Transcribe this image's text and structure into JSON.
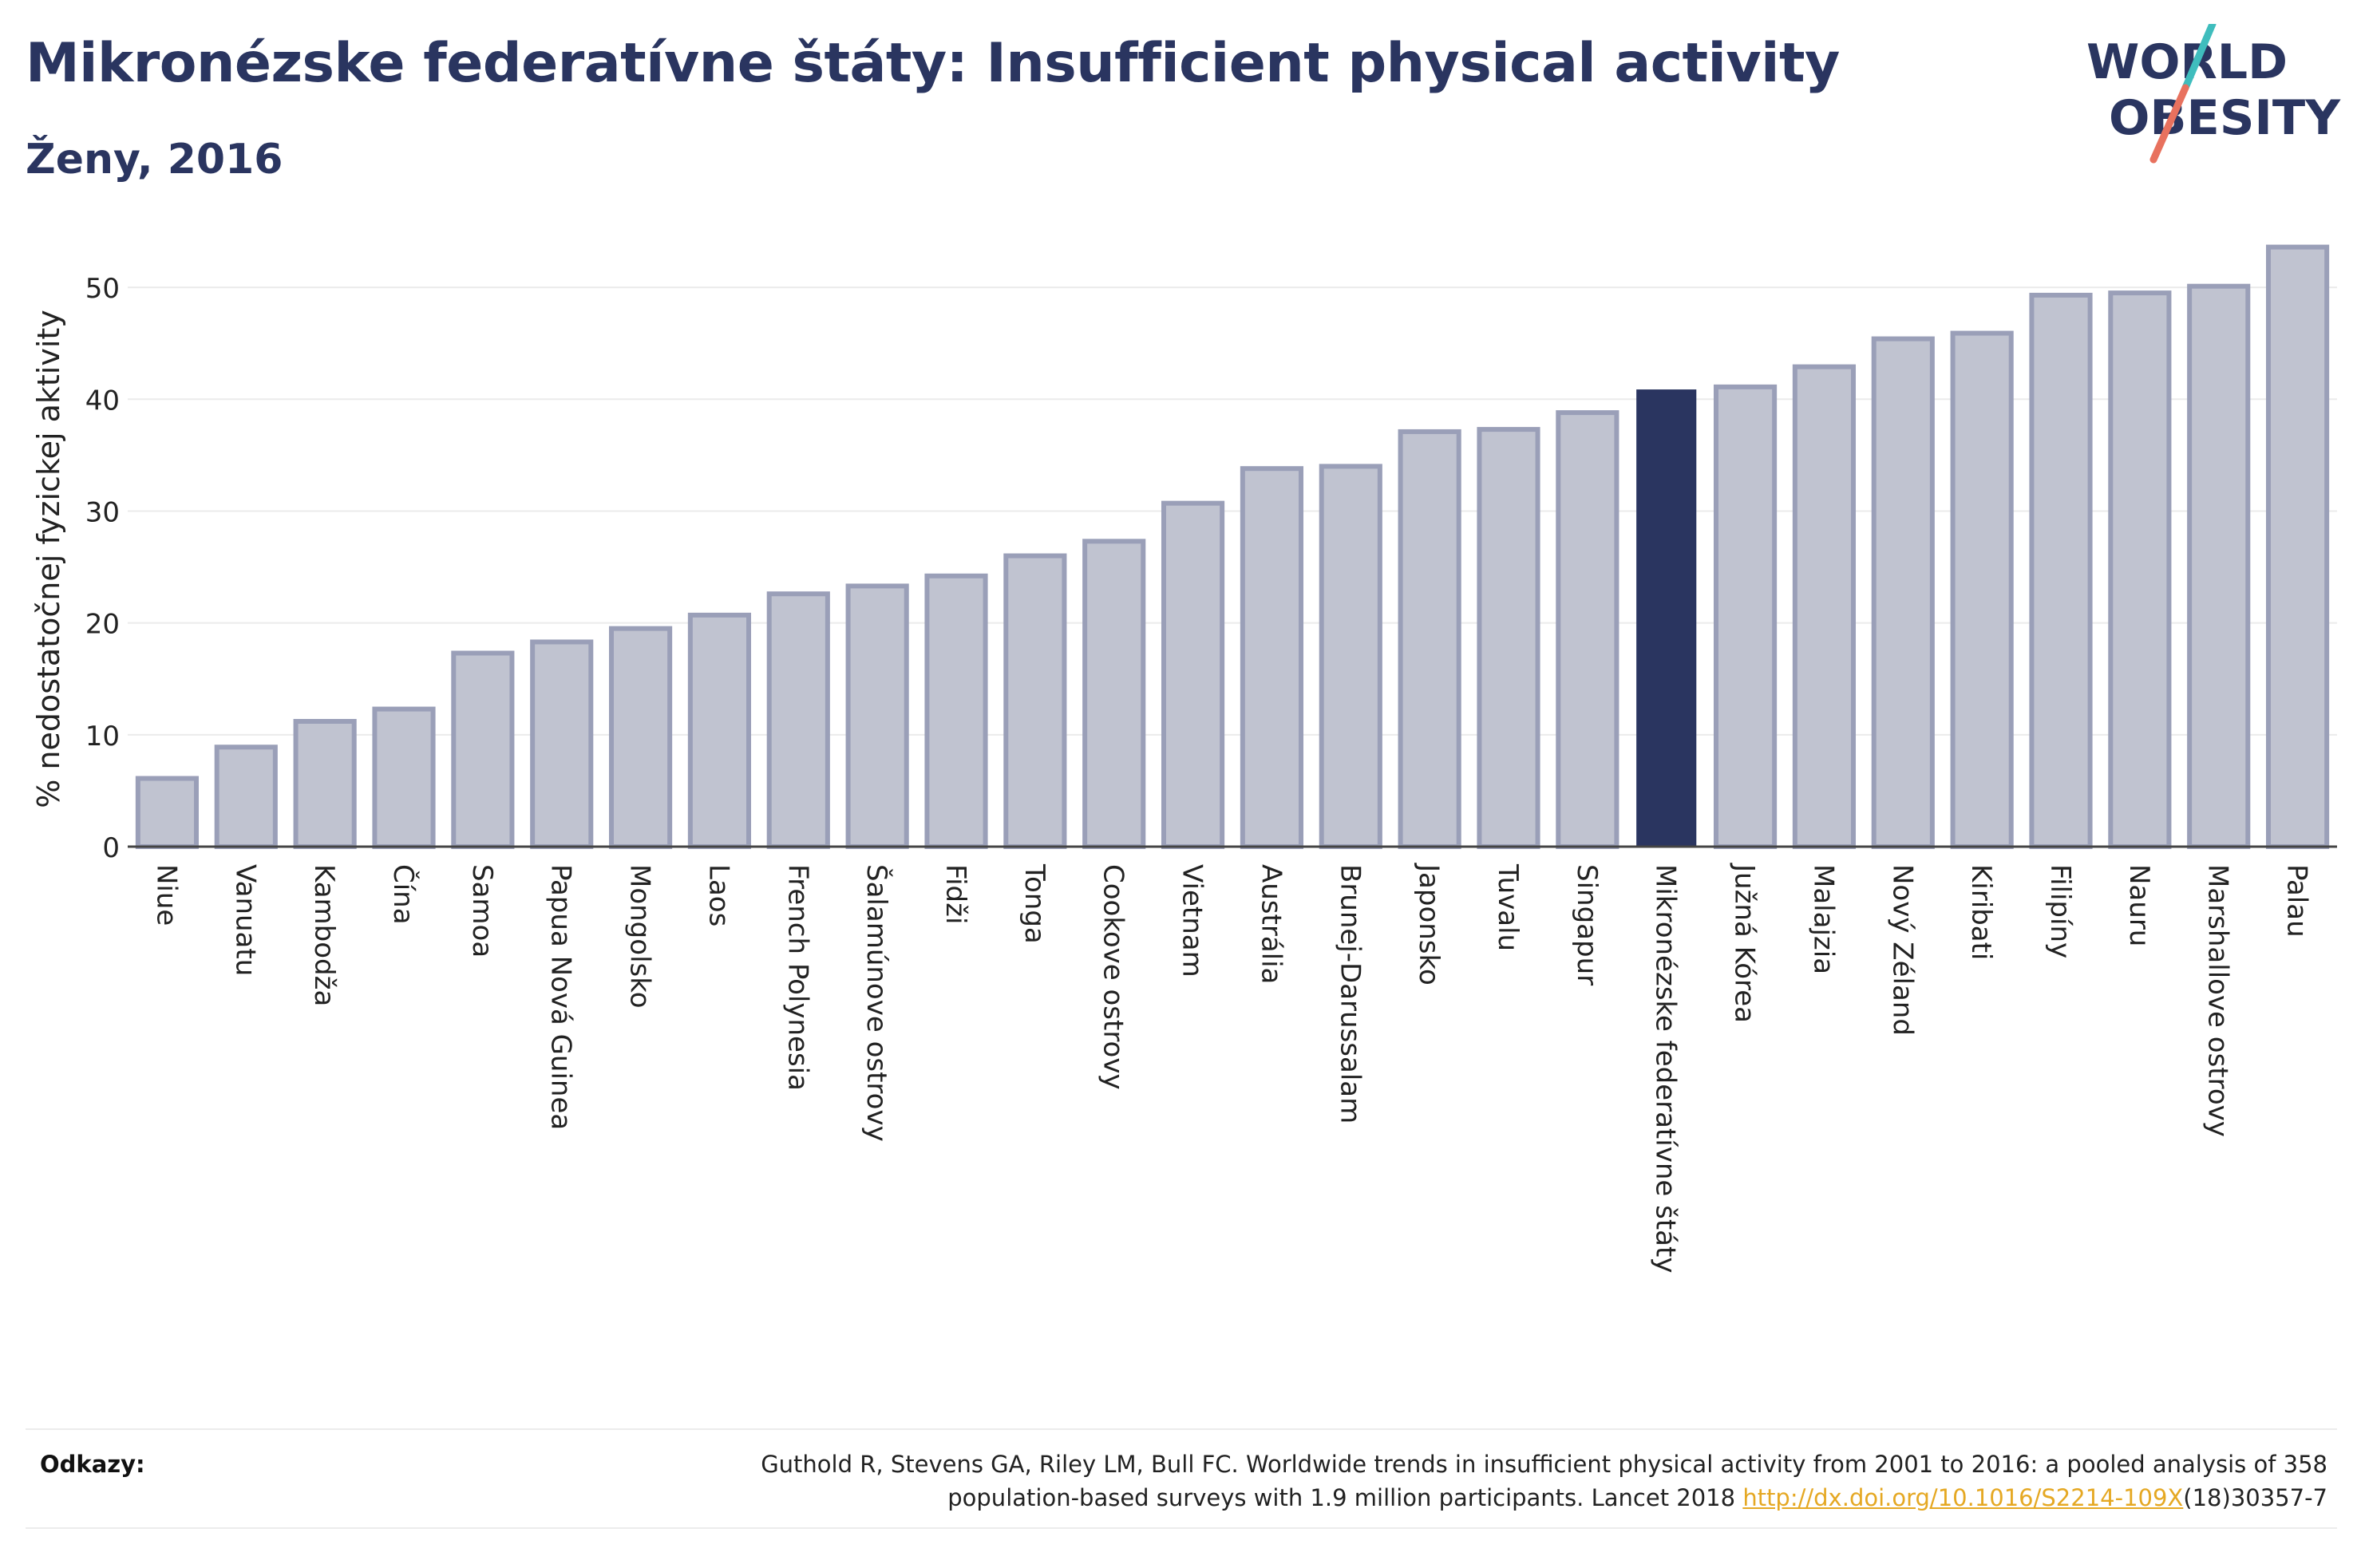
{
  "header": {
    "title": "Mikronézske federatívne štáty: Insufficient physical activity",
    "subtitle": "Ženy, 2016"
  },
  "logo": {
    "line1": "WORLD",
    "line2": "OBESITY",
    "colors": {
      "text": "#2a3560",
      "slash_teal": "#3fbdbd",
      "slash_red": "#e8715e"
    }
  },
  "colors": {
    "bar_default": "#c0c3d0",
    "bar_border": "#9a9fb8",
    "bar_highlight": "#2a3560",
    "grid": "#ebebeb",
    "axis": "#444444"
  },
  "chart_data": {
    "type": "bar",
    "ylabel": "% nedostatočnej fyzickej aktivity",
    "ylim": [
      0,
      55
    ],
    "yticks": [
      0,
      10,
      20,
      30,
      40,
      50
    ],
    "grid": true,
    "highlight": "Mikronézske federatívne štáty",
    "categories": [
      "Niue",
      "Vanuatu",
      "Kambodža",
      "Čína",
      "Samoa",
      "Papua Nová Guinea",
      "Mongolsko",
      "Laos",
      "French Polynesia",
      "Šalamúnove ostrovy",
      "Fidži",
      "Tonga",
      "Cookove ostrovy",
      "Vietnam",
      "Austrália",
      "Brunej-Darussalam",
      "Japonsko",
      "Tuvalu",
      "Singapur",
      "Mikronézske federatívne štáty",
      "Južná Kórea",
      "Malajzia",
      "Nový Zéland",
      "Kiribati",
      "Filipíny",
      "Nauru",
      "Marshallove ostrovy",
      "Palau"
    ],
    "values": [
      6.1,
      8.9,
      11.2,
      12.3,
      17.3,
      18.3,
      19.5,
      20.7,
      22.6,
      23.3,
      24.2,
      26.0,
      27.3,
      30.7,
      33.8,
      34.0,
      37.1,
      37.3,
      38.8,
      40.8,
      41.1,
      42.9,
      45.4,
      45.9,
      49.3,
      49.5,
      50.1,
      53.6
    ]
  },
  "references": {
    "label": "Odkazy:",
    "line1": "Guthold R, Stevens GA, Riley LM, Bull FC. Worldwide trends in insufficient physical activity from 2001 to 2016: a pooled analysis of 358",
    "line2_prefix": "population-based surveys with 1.9 million participants. Lancet 2018 ",
    "link": "http://dx.doi.org/10.1016/S2214-109X",
    "line2_suffix": "(18)30357-7"
  }
}
